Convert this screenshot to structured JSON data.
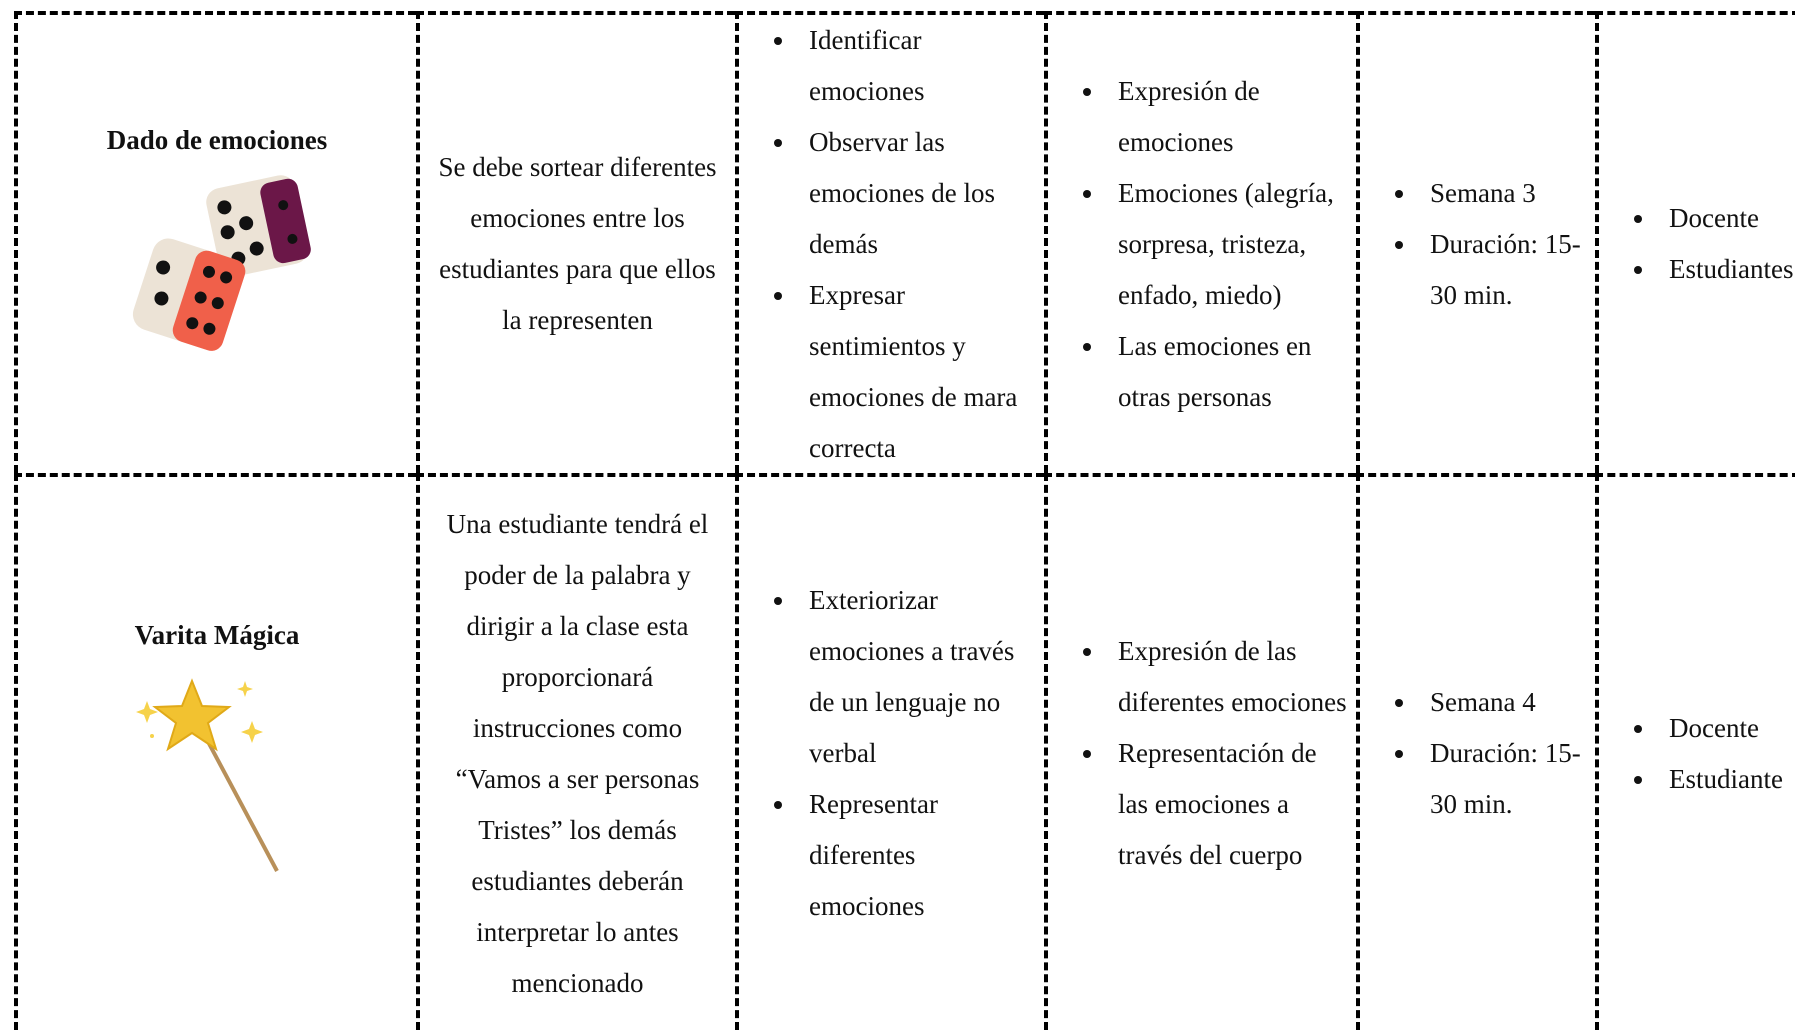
{
  "table": {
    "rows": [
      {
        "activity": "Dado de emociones",
        "description": "Se debe sortear diferentes emociones entre los estudiantes para que ellos la representen",
        "objectives": [
          "Identificar emociones",
          "Observar las emociones de los demás",
          "Expresar sentimientos y emociones de mara correcta"
        ],
        "contents": [
          "Expresión de emociones",
          "Emociones (alegría, sorpresa, tristeza, enfado, miedo)",
          "Las emociones en otras personas"
        ],
        "schedule": [
          "Semana 3",
          "Duración: 15-30 min."
        ],
        "participants": [
          "Docente",
          "Estudiantes"
        ]
      },
      {
        "activity": "Varita Mágica",
        "description": "Una estudiante tendrá el poder de la palabra y dirigir a la clase esta proporcionará instrucciones como “Vamos a ser personas Tristes” los demás estudiantes deberán interpretar lo antes mencionado",
        "objectives": [
          "Exteriorizar emociones a través de un lenguaje no verbal",
          "Representar diferentes emociones"
        ],
        "contents": [
          "Expresión de las diferentes emociones",
          "Representación de las emociones a través del cuerpo"
        ],
        "schedule": [
          "Semana 4",
          "Duración: 15-30 min."
        ],
        "participants": [
          "Docente",
          "Estudiante"
        ]
      }
    ]
  }
}
